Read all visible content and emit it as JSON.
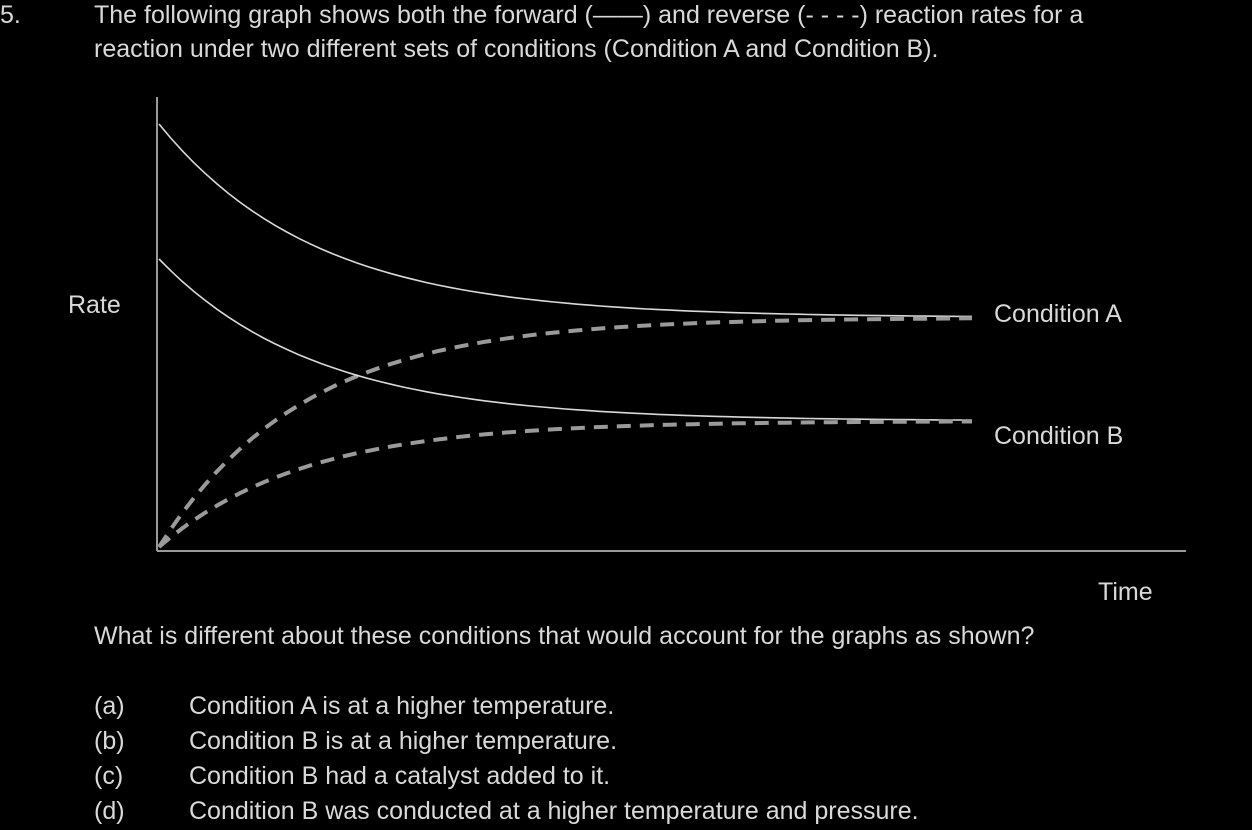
{
  "question": {
    "number": "5.",
    "stem_line1": "The following graph shows both the forward (——) and reverse (- - - -) reaction rates for a",
    "stem_line2": "reaction under two different sets of conditions (Condition A and Condition B)."
  },
  "chart_data": {
    "type": "line",
    "ylabel": "Rate",
    "xlabel": "Time",
    "grid": false,
    "ticks": false,
    "series": [
      {
        "name": "Condition A",
        "kind": "forward",
        "style": "solid",
        "shape": "decreasing",
        "start": 0.94,
        "equilibrium": 0.51
      },
      {
        "name": "Condition A",
        "kind": "reverse",
        "style": "dashed",
        "shape": "increasing",
        "start": 0.0,
        "equilibrium": 0.51
      },
      {
        "name": "Condition B",
        "kind": "forward",
        "style": "solid",
        "shape": "decreasing",
        "start": 0.64,
        "equilibrium": 0.28
      },
      {
        "name": "Condition B",
        "kind": "reverse",
        "style": "dashed",
        "shape": "increasing",
        "start": 0.0,
        "equilibrium": 0.28
      }
    ],
    "colors": {
      "forward": "#d9d9d9",
      "reverse": "#9a9a9a",
      "axis": "#9a9a9a"
    }
  },
  "prompt": "What is different about these conditions that would account for the graphs as shown?",
  "options": [
    {
      "letter": "(a)",
      "text": "Condition A is at a higher temperature."
    },
    {
      "letter": "(b)",
      "text": "Condition B is at a higher temperature."
    },
    {
      "letter": "(c)",
      "text": "Condition B had a catalyst added to it."
    },
    {
      "letter": "(d)",
      "text": "Condition B was conducted at a higher temperature and pressure."
    }
  ]
}
